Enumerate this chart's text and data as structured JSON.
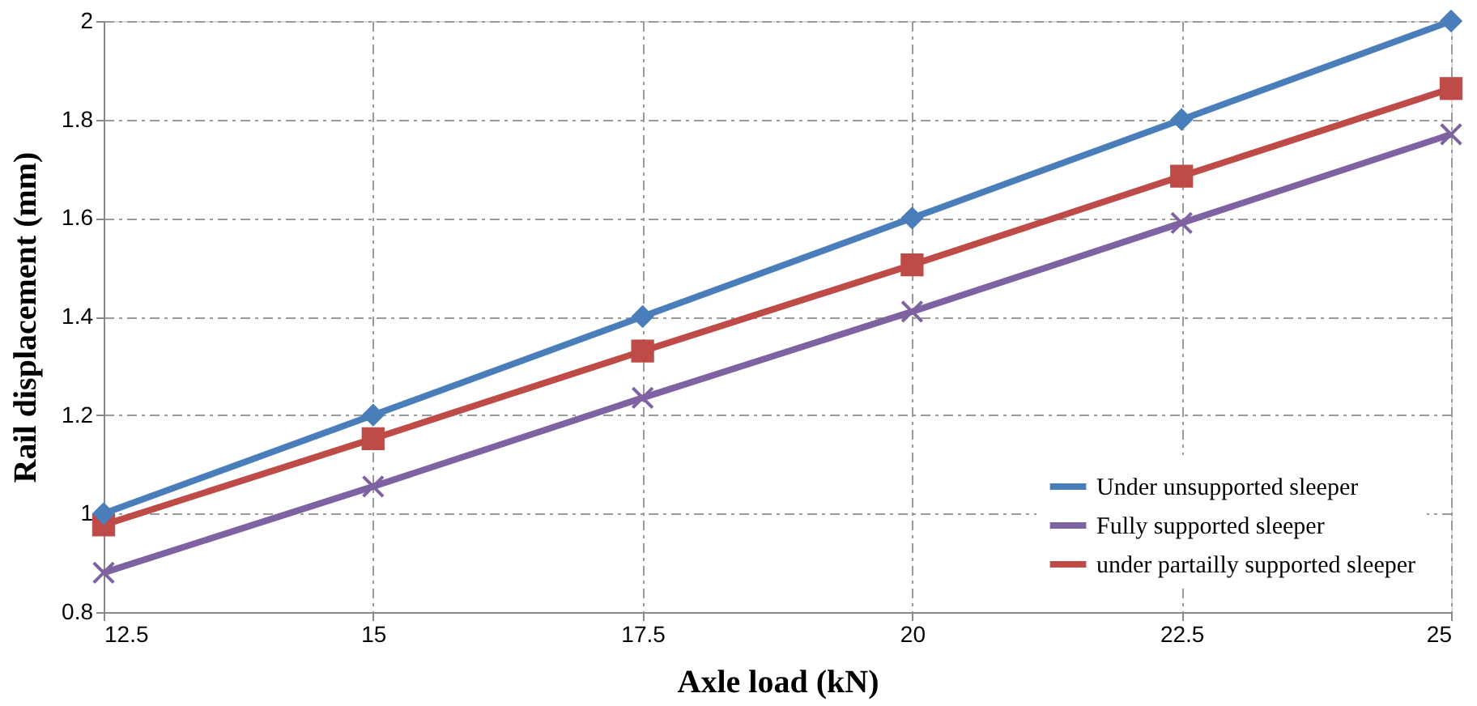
{
  "chart_data": {
    "type": "line",
    "xlabel": "Axle load (kN)",
    "ylabel": "Rail displacement (mm)",
    "x": [
      12.5,
      15,
      17.5,
      20,
      22.5,
      25
    ],
    "series": [
      {
        "name": "Under unsupported sleeper",
        "color": "#4a7ebb",
        "marker": "diamond",
        "values": [
          1.0,
          1.2,
          1.4,
          1.6,
          1.8,
          2.0
        ]
      },
      {
        "name": "Fully supported sleeper",
        "color": "#7e62a1",
        "marker": "cross",
        "values": [
          0.88,
          1.055,
          1.235,
          1.41,
          1.59,
          1.77
        ]
      },
      {
        "name": "under partailly supported sleeper",
        "color": "#be4b48",
        "marker": "square",
        "values": [
          0.977,
          1.152,
          1.33,
          1.505,
          1.685,
          1.863
        ]
      }
    ],
    "xlim": [
      12.5,
      25
    ],
    "xticks": [
      12.5,
      15,
      17.5,
      20,
      22.5,
      25
    ],
    "ylim": [
      0.8,
      2
    ],
    "yticks": [
      0.8,
      1,
      1.2,
      1.4,
      1.6,
      1.8,
      2
    ],
    "grid": true,
    "legend": "bottom right",
    "line_style": "solid"
  }
}
